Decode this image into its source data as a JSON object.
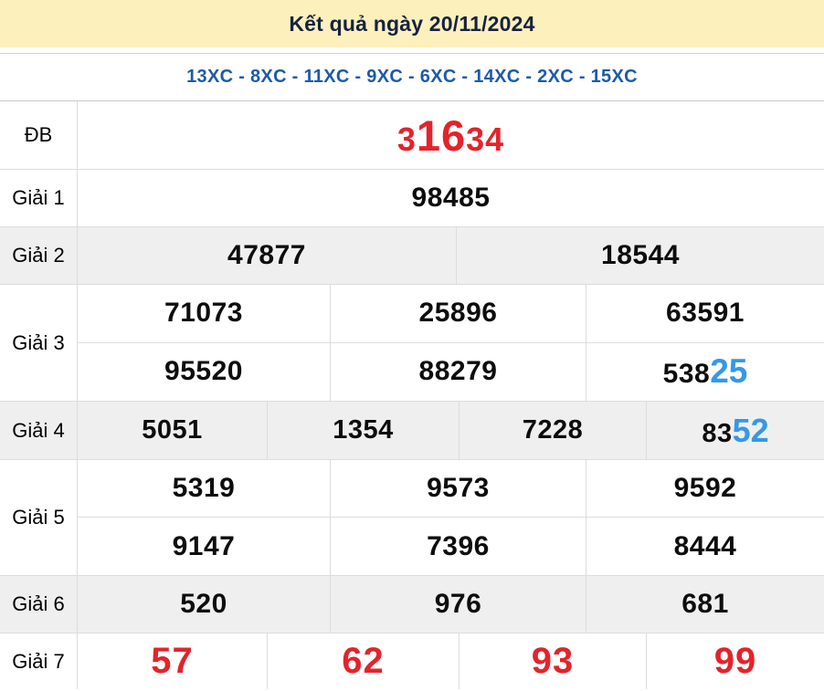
{
  "header": {
    "title": "Kết quả ngày 20/11/2024"
  },
  "subtitle": "13XC - 8XC - 11XC - 9XC - 6XC - 14XC - 2XC - 15XC",
  "colors": {
    "header_bg": "#fcf0bd",
    "title_text": "#16223f",
    "subtitle_blue": "#1d5aa8",
    "special_red": "#e4232b",
    "highlight_blue": "#3598e8",
    "shaded_row_bg": "#efefef"
  },
  "table": {
    "db": {
      "label": "ĐB",
      "num_left": "3",
      "num_big": "16",
      "num_right": "34"
    },
    "g1": {
      "label": "Giải 1",
      "c1": "98485"
    },
    "g2": {
      "label": "Giải 2",
      "c1": "47877",
      "c2": "18544"
    },
    "g3": {
      "label": "Giải 3",
      "r1c1": "71073",
      "r1c2": "25896",
      "r1c3": "63591",
      "r2c1": "95520",
      "r2c2": "88279",
      "r2c3_black": "538",
      "r2c3_blue": "25"
    },
    "g4": {
      "label": "Giải 4",
      "c1": "5051",
      "c2": "1354",
      "c3": "7228",
      "c4_black": "83",
      "c4_blue": "52"
    },
    "g5": {
      "label": "Giải 5",
      "r1c1": "5319",
      "r1c2": "9573",
      "r1c3": "9592",
      "r2c1": "9147",
      "r2c2": "7396",
      "r2c3": "8444"
    },
    "g6": {
      "label": "Giải 6",
      "c1": "520",
      "c2": "976",
      "c3": "681"
    },
    "g7": {
      "label": "Giải 7",
      "c1": "57",
      "c2": "62",
      "c3": "93",
      "c4": "99"
    }
  }
}
